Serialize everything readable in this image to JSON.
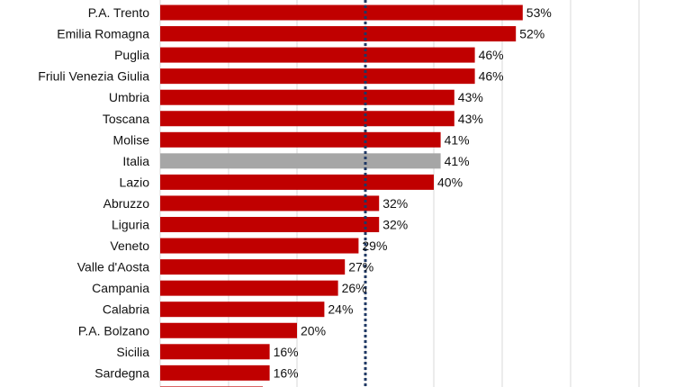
{
  "chart_data": {
    "type": "bar",
    "orientation": "horizontal",
    "categories": [
      "P.A. Trento",
      "Emilia Romagna",
      "Puglia",
      "Friuli Venezia Giulia",
      "Umbria",
      "Toscana",
      "Molise",
      "Italia",
      "Lazio",
      "Abruzzo",
      "Liguria",
      "Veneto",
      "Valle d'Aosta",
      "Campania",
      "Calabria",
      "P.A. Bolzano",
      "Sicilia",
      "Sardegna",
      ""
    ],
    "values": [
      53,
      52,
      46,
      46,
      43,
      43,
      41,
      41,
      40,
      32,
      32,
      29,
      27,
      26,
      24,
      20,
      16,
      16,
      15
    ],
    "value_labels": [
      "53%",
      "52%",
      "46%",
      "46%",
      "43%",
      "43%",
      "41%",
      "41%",
      "40%",
      "32%",
      "32%",
      "29%",
      "27%",
      "26%",
      "24%",
      "20%",
      "16%",
      "16%",
      ""
    ],
    "highlight_category": "Italia",
    "colors": {
      "bar": "#c00000",
      "highlight": "#a6a6a6",
      "reference_line": "#1f3864",
      "gridline": "#d9d9d9"
    },
    "reference_line_value": 30,
    "xlim": [
      0,
      70
    ],
    "grid": true,
    "legend": "none",
    "title": "",
    "xlabel": "",
    "ylabel": ""
  }
}
